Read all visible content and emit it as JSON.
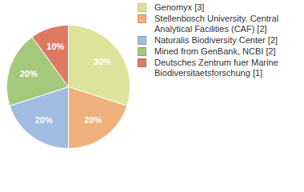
{
  "chart_data": {
    "type": "pie",
    "categories": [
      "Genomyx [3]",
      "Stellenbosch University. Central Analytical Facilities (CAF)  [2]",
      "Naturalis Biodiversity Center [2]",
      "Mined from GenBank, NCBI [2]",
      "Deutsches Zentrum fuer Marine Biodiversitaetsforschung [1]"
    ],
    "values": [
      30,
      20,
      20,
      20,
      10
    ],
    "colors": [
      "#dde39b",
      "#efb07c",
      "#a2bbe0",
      "#a5c97c",
      "#de7a62"
    ],
    "data_labels": true,
    "value_labels": [
      "30%",
      "20%",
      "20%",
      "20%",
      "10%"
    ],
    "legend": "right"
  }
}
